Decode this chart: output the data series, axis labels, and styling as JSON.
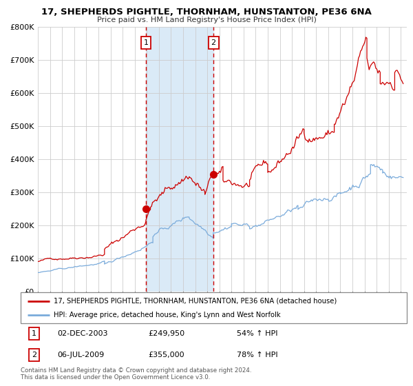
{
  "title": "17, SHEPHERDS PIGHTLE, THORNHAM, HUNSTANTON, PE36 6NA",
  "subtitle": "Price paid vs. HM Land Registry's House Price Index (HPI)",
  "legend_line1": "17, SHEPHERDS PIGHTLE, THORNHAM, HUNSTANTON, PE36 6NA (detached house)",
  "legend_line2": "HPI: Average price, detached house, King's Lynn and West Norfolk",
  "table_row1": [
    "1",
    "02-DEC-2003",
    "£249,950",
    "54% ↑ HPI"
  ],
  "table_row2": [
    "2",
    "06-JUL-2009",
    "£355,000",
    "78% ↑ HPI"
  ],
  "footnote1": "Contains HM Land Registry data © Crown copyright and database right 2024.",
  "footnote2": "This data is licensed under the Open Government Licence v3.0.",
  "red_line_color": "#cc0000",
  "blue_line_color": "#7aabdb",
  "background_color": "#ffffff",
  "plot_bg_color": "#ffffff",
  "shade_color": "#daeaf7",
  "dashed_line_color": "#cc0000",
  "grid_color": "#cccccc",
  "marker1_x": 2003.92,
  "marker1_y": 249950,
  "marker2_x": 2009.51,
  "marker2_y": 355000,
  "shade_x1": 2003.92,
  "shade_x2": 2009.51,
  "ylim": [
    0,
    800000
  ],
  "xlim_start": 1995.0,
  "xlim_end": 2025.5,
  "red_segments": [
    [
      1995.0,
      2000.5,
      90000,
      128000,
      0.013
    ],
    [
      2000.5,
      2003.92,
      128000,
      215000,
      0.016
    ],
    [
      2003.92,
      2004.3,
      215000,
      255000,
      0.018
    ],
    [
      2004.3,
      2007.5,
      255000,
      345000,
      0.016
    ],
    [
      2007.5,
      2008.8,
      345000,
      290000,
      0.018
    ],
    [
      2008.8,
      2009.51,
      290000,
      355000,
      0.012
    ],
    [
      2009.51,
      2010.3,
      355000,
      340000,
      0.018
    ],
    [
      2010.3,
      2012.5,
      340000,
      335000,
      0.014
    ],
    [
      2012.5,
      2014.0,
      335000,
      355000,
      0.013
    ],
    [
      2014.0,
      2017.0,
      355000,
      480000,
      0.013
    ],
    [
      2017.0,
      2019.5,
      480000,
      510000,
      0.012
    ],
    [
      2019.5,
      2022.2,
      510000,
      680000,
      0.016
    ],
    [
      2022.2,
      2023.3,
      680000,
      635000,
      0.018
    ],
    [
      2023.3,
      2024.5,
      635000,
      660000,
      0.013
    ],
    [
      2024.5,
      2025.2,
      660000,
      620000,
      0.012
    ]
  ],
  "blue_segments": [
    [
      1995.0,
      2000.5,
      57000,
      82000,
      0.01
    ],
    [
      2000.5,
      2004.5,
      82000,
      168000,
      0.012
    ],
    [
      2004.5,
      2007.5,
      168000,
      222000,
      0.011
    ],
    [
      2007.5,
      2009.5,
      222000,
      178000,
      0.013
    ],
    [
      2009.5,
      2011.0,
      178000,
      205000,
      0.011
    ],
    [
      2011.0,
      2012.5,
      205000,
      193000,
      0.011
    ],
    [
      2012.5,
      2016.5,
      193000,
      248000,
      0.01
    ],
    [
      2016.5,
      2020.0,
      248000,
      295000,
      0.01
    ],
    [
      2020.0,
      2022.5,
      295000,
      380000,
      0.013
    ],
    [
      2022.5,
      2023.5,
      380000,
      360000,
      0.013
    ],
    [
      2023.5,
      2025.2,
      360000,
      350000,
      0.01
    ]
  ]
}
